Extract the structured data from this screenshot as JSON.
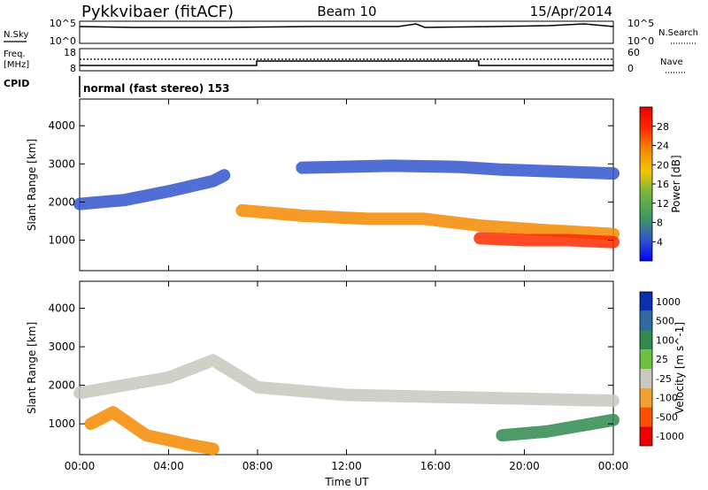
{
  "header": {
    "station": "Pykkvibaer (fitACF)",
    "beam": "Beam 10",
    "date": "15/Apr/2014"
  },
  "top_panels": {
    "nsky_label": "N.Sky",
    "nsearch_label": "N.Search",
    "nsky_ticks": [
      "10^5",
      "10^0"
    ],
    "nsearch_ticks": [
      "10^5",
      "10^0"
    ],
    "freq_label": "Freq.",
    "freq_unit": "[MHz]",
    "freq_ticks": [
      "18",
      "8"
    ],
    "nave_label": "Nave",
    "nave_ticks": [
      "60",
      "0"
    ],
    "cpid_label": "CPID",
    "cpid_text": "normal (fast stereo) 153"
  },
  "chart_data": [
    {
      "type": "heatmap",
      "name": "power",
      "ylabel": "Slant Range [km]",
      "yticks": [
        1000,
        2000,
        3000,
        4000
      ],
      "ylim": [
        200,
        4700
      ],
      "xlim": [
        0,
        24
      ],
      "colorbar": {
        "label": "Power [dB]",
        "ticks": [
          "28",
          "24",
          "20",
          "16",
          "12",
          "8",
          "4"
        ],
        "colors": [
          "#0000ff",
          "#3355cc",
          "#3a9a5e",
          "#7ab640",
          "#f4c400",
          "#f48a00",
          "#ff2a00",
          "#e80000"
        ]
      },
      "bands": [
        {
          "color": "#f48a00",
          "points": [
            [
              7.3,
              1780
            ],
            [
              10,
              1640
            ],
            [
              13,
              1560
            ],
            [
              15.5,
              1560
            ],
            [
              18,
              1380
            ],
            [
              21,
              1260
            ],
            [
              24,
              1160
            ]
          ]
        },
        {
          "color": "#3355cc",
          "points": [
            [
              0,
              1950
            ],
            [
              2,
              2050
            ],
            [
              4,
              2280
            ],
            [
              6,
              2550
            ],
            [
              6.5,
              2700
            ]
          ]
        },
        {
          "color": "#3355cc",
          "points": [
            [
              10,
              2900
            ],
            [
              14,
              2950
            ],
            [
              17,
              2920
            ],
            [
              19,
              2850
            ],
            [
              24,
              2750
            ]
          ]
        },
        {
          "color": "#ff2a00",
          "points": [
            [
              18,
              1050
            ],
            [
              20,
              1000
            ],
            [
              22,
              1000
            ],
            [
              24,
              950
            ]
          ]
        }
      ]
    },
    {
      "type": "heatmap",
      "name": "velocity",
      "ylabel": "Slant Range [km]",
      "yticks": [
        1000,
        2000,
        3000,
        4000
      ],
      "ylim": [
        200,
        4700
      ],
      "xlim": [
        0,
        24
      ],
      "xticks": [
        "00:00",
        "04:00",
        "08:00",
        "12:00",
        "16:00",
        "20:00",
        "00:00"
      ],
      "xlabel": "Time UT",
      "colorbar": {
        "label": "Velocity [m s^-1]",
        "ticks": [
          "1000",
          "500",
          "100",
          "25",
          "-25",
          "-100",
          "-500",
          "-1000"
        ],
        "colors": [
          "#0a2fb0",
          "#2f6aa0",
          "#2e8a4e",
          "#6fc040",
          "#c8c8c0",
          "#f4a030",
          "#ff5000",
          "#ee0000"
        ]
      },
      "bands": [
        {
          "color": "#c8c8c0",
          "points": [
            [
              0,
              1800
            ],
            [
              4,
              2200
            ],
            [
              6,
              2650
            ],
            [
              8,
              1950
            ],
            [
              12,
              1750
            ],
            [
              16,
              1700
            ],
            [
              20,
              1650
            ],
            [
              24,
              1600
            ]
          ]
        },
        {
          "color": "#f48a00",
          "points": [
            [
              0.5,
              1000
            ],
            [
              1.5,
              1300
            ],
            [
              3,
              700
            ],
            [
              5,
              450
            ],
            [
              6,
              350
            ]
          ]
        },
        {
          "color": "#2e8a4e",
          "points": [
            [
              19,
              700
            ],
            [
              21,
              800
            ],
            [
              23,
              1000
            ],
            [
              24,
              1100
            ]
          ]
        }
      ]
    }
  ]
}
